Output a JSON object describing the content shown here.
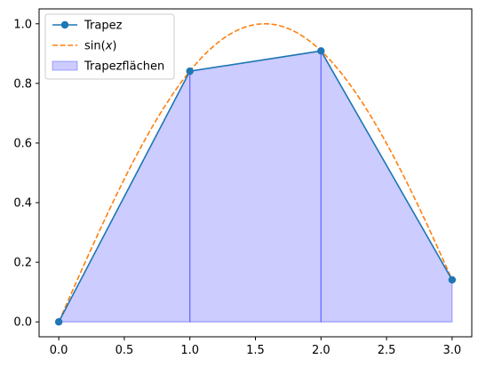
{
  "chart_data": {
    "type": "line",
    "title": "",
    "xlabel": "",
    "ylabel": "",
    "xlim": [
      -0.15,
      3.15
    ],
    "ylim": [
      -0.05,
      1.05
    ],
    "xticks": [
      0.0,
      0.5,
      1.0,
      1.5,
      2.0,
      2.5,
      3.0
    ],
    "xtick_labels": [
      "0.0",
      "0.5",
      "1.0",
      "1.5",
      "2.0",
      "2.5",
      "3.0"
    ],
    "yticks": [
      0.0,
      0.2,
      0.4,
      0.6,
      0.8,
      1.0
    ],
    "ytick_labels": [
      "0.0",
      "0.2",
      "0.4",
      "0.6",
      "0.8",
      "1.0"
    ],
    "grid": false,
    "legend_position": "upper-left",
    "series": [
      {
        "name": "Trapez",
        "kind": "line-with-markers",
        "color": "#1f77b4",
        "x": [
          0,
          1,
          2,
          3
        ],
        "y": [
          0.0,
          0.841,
          0.909,
          0.141
        ]
      },
      {
        "name": "sin(x)",
        "kind": "dashed-curve",
        "color": "#ff7f0e",
        "function": "sin(x)",
        "domain": [
          0,
          3
        ]
      },
      {
        "name": "Trapezflächen",
        "kind": "filled-area",
        "color": "#0000ff",
        "x": [
          0,
          1,
          2,
          3
        ],
        "y": [
          0.0,
          0.841,
          0.909,
          0.141
        ]
      }
    ],
    "legend": [
      {
        "label_pre": "Trapez",
        "label_italic": "",
        "label_post": ""
      },
      {
        "label_pre": "sin(",
        "label_italic": "x",
        "label_post": ")"
      },
      {
        "label_pre": "Trapezflächen",
        "label_italic": "",
        "label_post": ""
      }
    ]
  }
}
